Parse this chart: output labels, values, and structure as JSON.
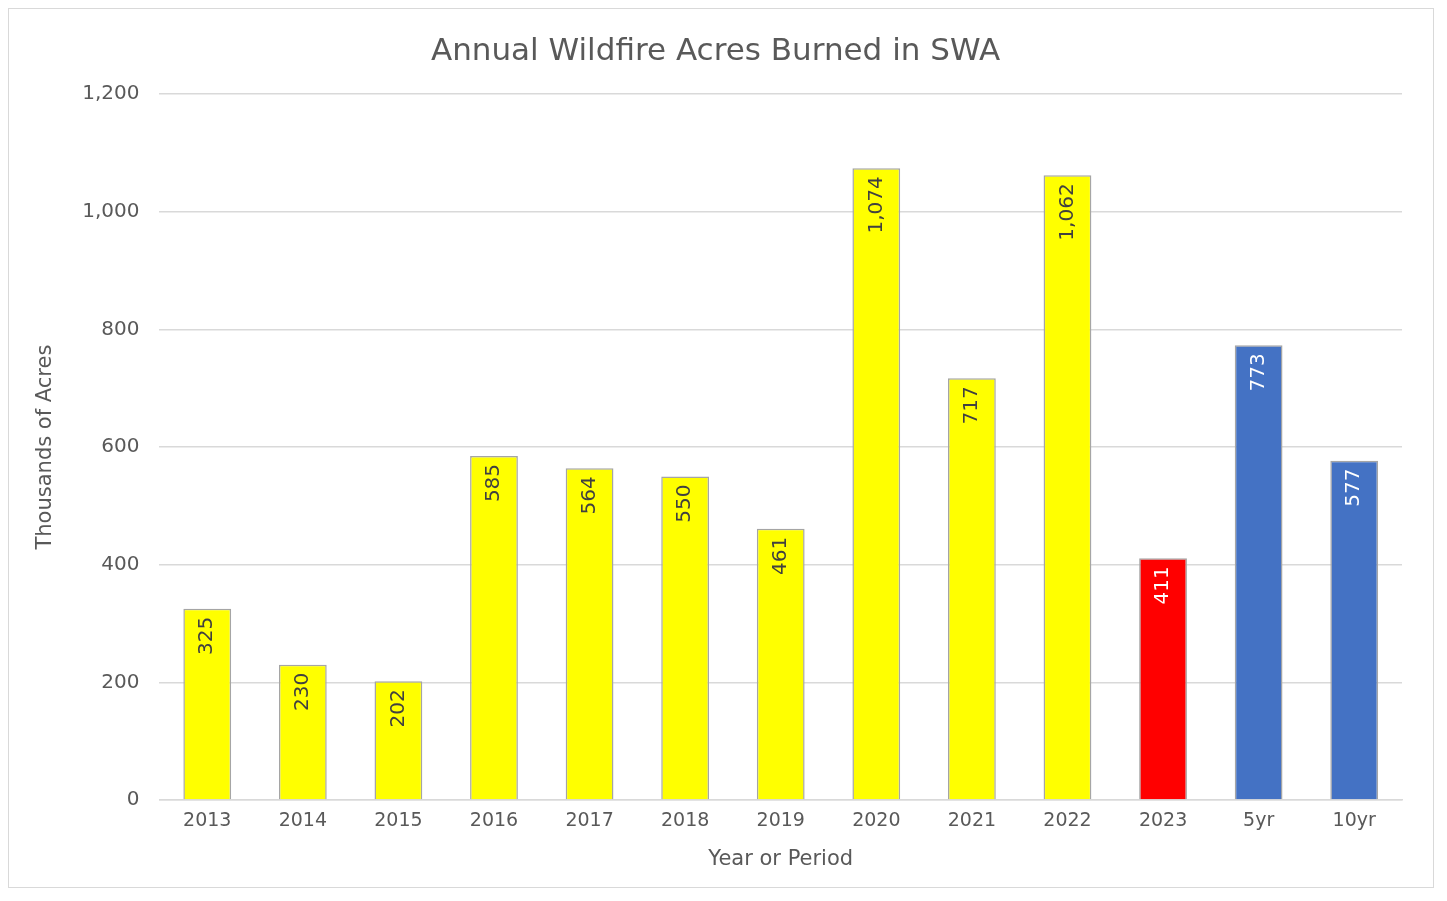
{
  "chart_data": {
    "type": "bar",
    "title": "Annual Wildfire Acres Burned in SWA",
    "xlabel": "Year or Period",
    "ylabel": "Thousands of Acres",
    "categories": [
      "2013",
      "2014",
      "2015",
      "2016",
      "2017",
      "2018",
      "2019",
      "2020",
      "2021",
      "2022",
      "2023",
      "5yr",
      "10yr"
    ],
    "values": [
      325,
      230,
      202,
      585,
      564,
      550,
      461,
      1074,
      717,
      1062,
      411,
      773,
      577
    ],
    "colors": [
      "#ffff00",
      "#ffff00",
      "#ffff00",
      "#ffff00",
      "#ffff00",
      "#ffff00",
      "#ffff00",
      "#ffff00",
      "#ffff00",
      "#ffff00",
      "#ff0000",
      "#4472c4",
      "#4472c4"
    ],
    "value_labels": [
      "325",
      "230",
      "202",
      "585",
      "564",
      "550",
      "461",
      "1,074",
      "717",
      "1,062",
      "411",
      "773",
      "577"
    ],
    "ylim": [
      0,
      1200
    ],
    "yticks": [
      0,
      200,
      400,
      600,
      800,
      {
        "value": 1000,
        "label": "1,000"
      },
      {
        "value": 1200,
        "label": "1,200"
      }
    ],
    "grid": "y",
    "legend": false
  }
}
